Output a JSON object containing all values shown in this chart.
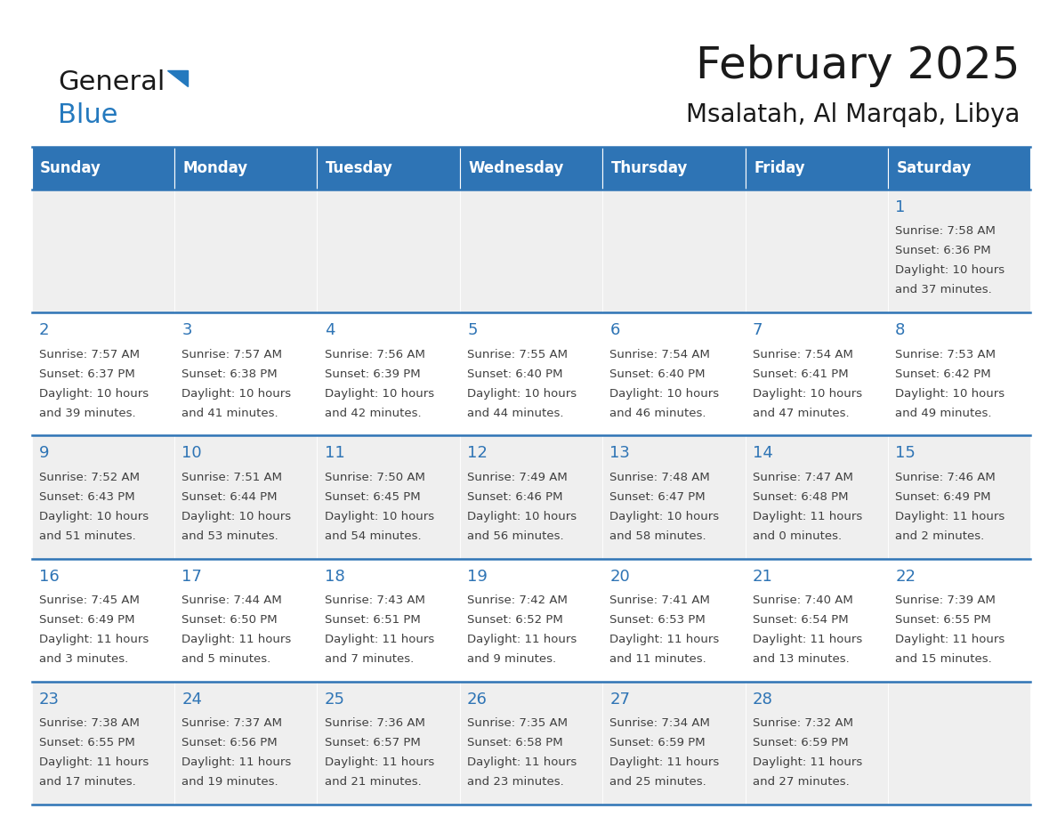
{
  "title": "February 2025",
  "subtitle": "Msalatah, Al Marqab, Libya",
  "days_of_week": [
    "Sunday",
    "Monday",
    "Tuesday",
    "Wednesday",
    "Thursday",
    "Friday",
    "Saturday"
  ],
  "header_bg": "#2E74B5",
  "header_text": "#FFFFFF",
  "cell_bg_odd": "#EFEFEF",
  "cell_bg_even": "#FFFFFF",
  "separator_color": "#2E74B5",
  "day_number_color": "#2E74B5",
  "text_color": "#404040",
  "title_fontsize": 36,
  "subtitle_fontsize": 20,
  "header_fontsize": 12,
  "day_number_fontsize": 13,
  "cell_text_fontsize": 9.5,
  "calendar_data": [
    [
      null,
      null,
      null,
      null,
      null,
      null,
      {
        "day": "1",
        "sunrise": "7:58 AM",
        "sunset": "6:36 PM",
        "daylight": "10 hours",
        "daylight2": "and 37 minutes."
      }
    ],
    [
      {
        "day": "2",
        "sunrise": "7:57 AM",
        "sunset": "6:37 PM",
        "daylight": "10 hours",
        "daylight2": "and 39 minutes."
      },
      {
        "day": "3",
        "sunrise": "7:57 AM",
        "sunset": "6:38 PM",
        "daylight": "10 hours",
        "daylight2": "and 41 minutes."
      },
      {
        "day": "4",
        "sunrise": "7:56 AM",
        "sunset": "6:39 PM",
        "daylight": "10 hours",
        "daylight2": "and 42 minutes."
      },
      {
        "day": "5",
        "sunrise": "7:55 AM",
        "sunset": "6:40 PM",
        "daylight": "10 hours",
        "daylight2": "and 44 minutes."
      },
      {
        "day": "6",
        "sunrise": "7:54 AM",
        "sunset": "6:40 PM",
        "daylight": "10 hours",
        "daylight2": "and 46 minutes."
      },
      {
        "day": "7",
        "sunrise": "7:54 AM",
        "sunset": "6:41 PM",
        "daylight": "10 hours",
        "daylight2": "and 47 minutes."
      },
      {
        "day": "8",
        "sunrise": "7:53 AM",
        "sunset": "6:42 PM",
        "daylight": "10 hours",
        "daylight2": "and 49 minutes."
      }
    ],
    [
      {
        "day": "9",
        "sunrise": "7:52 AM",
        "sunset": "6:43 PM",
        "daylight": "10 hours",
        "daylight2": "and 51 minutes."
      },
      {
        "day": "10",
        "sunrise": "7:51 AM",
        "sunset": "6:44 PM",
        "daylight": "10 hours",
        "daylight2": "and 53 minutes."
      },
      {
        "day": "11",
        "sunrise": "7:50 AM",
        "sunset": "6:45 PM",
        "daylight": "10 hours",
        "daylight2": "and 54 minutes."
      },
      {
        "day": "12",
        "sunrise": "7:49 AM",
        "sunset": "6:46 PM",
        "daylight": "10 hours",
        "daylight2": "and 56 minutes."
      },
      {
        "day": "13",
        "sunrise": "7:48 AM",
        "sunset": "6:47 PM",
        "daylight": "10 hours",
        "daylight2": "and 58 minutes."
      },
      {
        "day": "14",
        "sunrise": "7:47 AM",
        "sunset": "6:48 PM",
        "daylight": "11 hours",
        "daylight2": "and 0 minutes."
      },
      {
        "day": "15",
        "sunrise": "7:46 AM",
        "sunset": "6:49 PM",
        "daylight": "11 hours",
        "daylight2": "and 2 minutes."
      }
    ],
    [
      {
        "day": "16",
        "sunrise": "7:45 AM",
        "sunset": "6:49 PM",
        "daylight": "11 hours",
        "daylight2": "and 3 minutes."
      },
      {
        "day": "17",
        "sunrise": "7:44 AM",
        "sunset": "6:50 PM",
        "daylight": "11 hours",
        "daylight2": "and 5 minutes."
      },
      {
        "day": "18",
        "sunrise": "7:43 AM",
        "sunset": "6:51 PM",
        "daylight": "11 hours",
        "daylight2": "and 7 minutes."
      },
      {
        "day": "19",
        "sunrise": "7:42 AM",
        "sunset": "6:52 PM",
        "daylight": "11 hours",
        "daylight2": "and 9 minutes."
      },
      {
        "day": "20",
        "sunrise": "7:41 AM",
        "sunset": "6:53 PM",
        "daylight": "11 hours",
        "daylight2": "and 11 minutes."
      },
      {
        "day": "21",
        "sunrise": "7:40 AM",
        "sunset": "6:54 PM",
        "daylight": "11 hours",
        "daylight2": "and 13 minutes."
      },
      {
        "day": "22",
        "sunrise": "7:39 AM",
        "sunset": "6:55 PM",
        "daylight": "11 hours",
        "daylight2": "and 15 minutes."
      }
    ],
    [
      {
        "day": "23",
        "sunrise": "7:38 AM",
        "sunset": "6:55 PM",
        "daylight": "11 hours",
        "daylight2": "and 17 minutes."
      },
      {
        "day": "24",
        "sunrise": "7:37 AM",
        "sunset": "6:56 PM",
        "daylight": "11 hours",
        "daylight2": "and 19 minutes."
      },
      {
        "day": "25",
        "sunrise": "7:36 AM",
        "sunset": "6:57 PM",
        "daylight": "11 hours",
        "daylight2": "and 21 minutes."
      },
      {
        "day": "26",
        "sunrise": "7:35 AM",
        "sunset": "6:58 PM",
        "daylight": "11 hours",
        "daylight2": "and 23 minutes."
      },
      {
        "day": "27",
        "sunrise": "7:34 AM",
        "sunset": "6:59 PM",
        "daylight": "11 hours",
        "daylight2": "and 25 minutes."
      },
      {
        "day": "28",
        "sunrise": "7:32 AM",
        "sunset": "6:59 PM",
        "daylight": "11 hours",
        "daylight2": "and 27 minutes."
      },
      null
    ]
  ],
  "logo_color_general": "#1A1A1A",
  "logo_color_blue": "#2479BE",
  "logo_triangle_color": "#2479BE",
  "fig_width": 11.88,
  "fig_height": 9.18,
  "dpi": 100
}
